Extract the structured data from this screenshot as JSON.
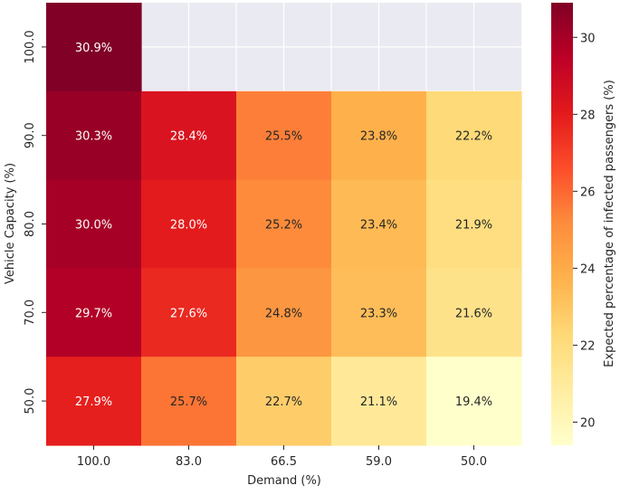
{
  "chart_data": {
    "type": "heatmap",
    "title": "",
    "xlabel": "Demand (%)",
    "ylabel": "Vehicle Capacity (%)",
    "x_categories": [
      "100.0",
      "83.0",
      "66.5",
      "59.0",
      "50.0"
    ],
    "y_categories": [
      "100.0",
      "90.0",
      "80.0",
      "70.0",
      "50.0"
    ],
    "values": [
      [
        30.9,
        null,
        null,
        null,
        null
      ],
      [
        30.3,
        28.4,
        25.5,
        23.8,
        22.2
      ],
      [
        30.0,
        28.0,
        25.2,
        23.4,
        21.9
      ],
      [
        29.7,
        27.6,
        24.8,
        23.3,
        21.6
      ],
      [
        27.9,
        25.7,
        22.7,
        21.1,
        19.4
      ]
    ],
    "cell_labels": [
      [
        "30.9%",
        "",
        "",
        "",
        ""
      ],
      [
        "30.3%",
        "28.4%",
        "25.5%",
        "23.8%",
        "22.2%"
      ],
      [
        "30.0%",
        "28.0%",
        "25.2%",
        "23.4%",
        "21.9%"
      ],
      [
        "29.7%",
        "27.6%",
        "24.8%",
        "23.3%",
        "21.6%"
      ],
      [
        "27.9%",
        "25.7%",
        "22.7%",
        "21.1%",
        "19.4%"
      ]
    ],
    "colorbar": {
      "label": "Expected percentage of infected passengers (%)",
      "ticks": [
        20,
        22,
        24,
        26,
        28,
        30
      ],
      "range": [
        19.4,
        30.9
      ],
      "colormap": "YlOrRd"
    },
    "missing_color": "#eaeaf2",
    "grid": true
  }
}
